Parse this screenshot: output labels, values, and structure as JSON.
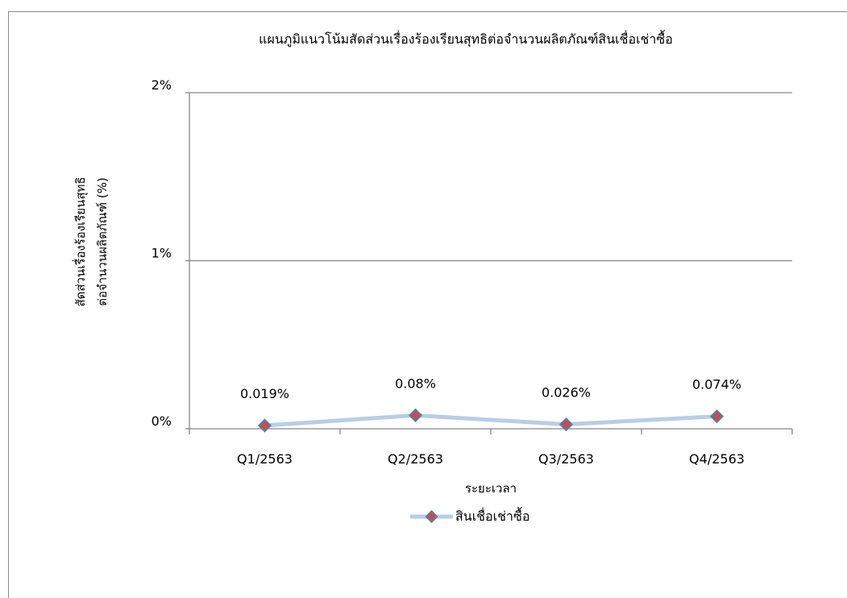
{
  "chart_data": {
    "type": "line",
    "title": "แผนภูมิแนวโน้มสัดส่วนเรื่องร้องเรียนสุทธิต่อจำนวนผลิตภัณฑ์สินเชื่อเช่าซื้อ",
    "xlabel": "ระยะเวลา",
    "ylabel_lines": [
      "สัดส่วนเรื่องร้องเรียนสุทธิ",
      "ต่อจำนวนผลิตภัณฑ์ (%)"
    ],
    "categories": [
      "Q1/2563",
      "Q2/2563",
      "Q3/2563",
      "Q4/2563"
    ],
    "series": [
      {
        "name": "สินเชื่อเช่าซื้อ",
        "values": [
          0.019,
          0.08,
          0.026,
          0.074
        ],
        "labels": [
          "0.019%",
          "0.08%",
          "0.026%",
          "0.074%"
        ],
        "line_color": "#b9cde5",
        "marker_fill": "#c0504d",
        "marker_stroke": "#4f81bd"
      }
    ],
    "ylim": [
      0,
      2
    ],
    "yticks": [
      0,
      1,
      2
    ],
    "ytick_labels": [
      "0%",
      "1%",
      "2%"
    ],
    "grid": true,
    "legend_position": "bottom"
  }
}
